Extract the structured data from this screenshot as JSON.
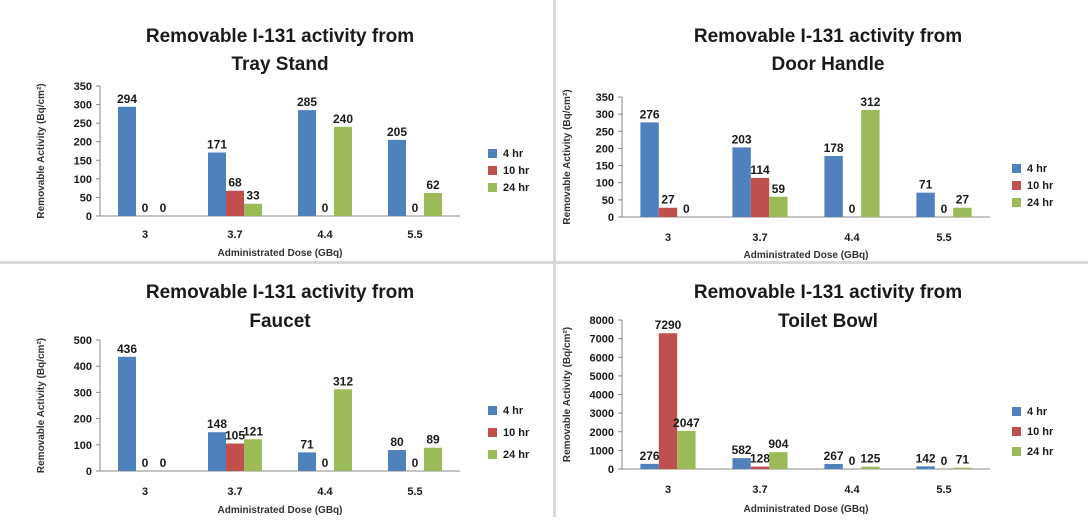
{
  "chart_data": [
    {
      "type": "bar",
      "title_line1": "Removable I-131 activity from",
      "title_line2": "Tray Stand",
      "xlabel": "Administrated Dose (GBq)",
      "ylabel": "Removable Activity (Bq/cm²)",
      "categories": [
        "3",
        "3.7",
        "4.4",
        "5.5"
      ],
      "ylim": [
        0,
        350
      ],
      "yticks": [
        0,
        50,
        100,
        150,
        200,
        250,
        300,
        350
      ],
      "series": [
        {
          "name": "4 hr",
          "color": "#4f81bd",
          "values": [
            294,
            171,
            285,
            205
          ]
        },
        {
          "name": "10 hr",
          "color": "#c0504d",
          "values": [
            0,
            68,
            0,
            0
          ]
        },
        {
          "name": "24 hr",
          "color": "#9bbb59",
          "values": [
            0,
            33,
            240,
            62
          ]
        }
      ],
      "legend": "right",
      "grid": false
    },
    {
      "type": "bar",
      "title_line1": "Removable I-131 activity from",
      "title_line2": "Door Handle",
      "xlabel": "Administrated Dose (GBq)",
      "ylabel": "Removable Activity (Bq/cm²)",
      "categories": [
        "3",
        "3.7",
        "4.4",
        "5.5"
      ],
      "ylim": [
        0,
        350
      ],
      "yticks": [
        0,
        50,
        100,
        150,
        200,
        250,
        300,
        350
      ],
      "series": [
        {
          "name": "4 hr",
          "color": "#4f81bd",
          "values": [
            276,
            203,
            178,
            71
          ]
        },
        {
          "name": "10 hr",
          "color": "#c0504d",
          "values": [
            27,
            114,
            0,
            0
          ]
        },
        {
          "name": "24 hr",
          "color": "#9bbb59",
          "values": [
            0,
            59,
            312,
            27
          ]
        }
      ],
      "legend": "right",
      "grid": false
    },
    {
      "type": "bar",
      "title_line1": "Removable I-131 activity from",
      "title_line2": "Faucet",
      "xlabel": "Administrated Dose (GBq)",
      "ylabel": "Removable Activity (Bq/cm²)",
      "categories": [
        "3",
        "3.7",
        "4.4",
        "5.5"
      ],
      "ylim": [
        0,
        500
      ],
      "yticks": [
        0,
        100,
        200,
        300,
        400,
        500
      ],
      "series": [
        {
          "name": "4 hr",
          "color": "#4f81bd",
          "values": [
            436,
            148,
            71,
            80
          ]
        },
        {
          "name": "10 hr",
          "color": "#c0504d",
          "values": [
            0,
            105,
            0,
            0
          ]
        },
        {
          "name": "24 hr",
          "color": "#9bbb59",
          "values": [
            0,
            121,
            312,
            89
          ]
        }
      ],
      "legend": "right",
      "grid": false
    },
    {
      "type": "bar",
      "title_line1": "Removable I-131 activity from",
      "title_line2": "Toilet Bowl",
      "xlabel": "Administrated Dose (GBq)",
      "ylabel": "Removable Activity (Bq/cm²)",
      "categories": [
        "3",
        "3.7",
        "4.4",
        "5.5"
      ],
      "ylim": [
        0,
        8000
      ],
      "yticks": [
        0,
        1000,
        2000,
        3000,
        4000,
        5000,
        6000,
        7000,
        8000
      ],
      "series": [
        {
          "name": "4 hr",
          "color": "#4f81bd",
          "values": [
            276,
            582,
            267,
            142
          ]
        },
        {
          "name": "10 hr",
          "color": "#c0504d",
          "values": [
            7290,
            128,
            0,
            0
          ]
        },
        {
          "name": "24 hr",
          "color": "#9bbb59",
          "values": [
            2047,
            904,
            125,
            71
          ]
        }
      ],
      "legend": "right",
      "grid": false
    }
  ]
}
